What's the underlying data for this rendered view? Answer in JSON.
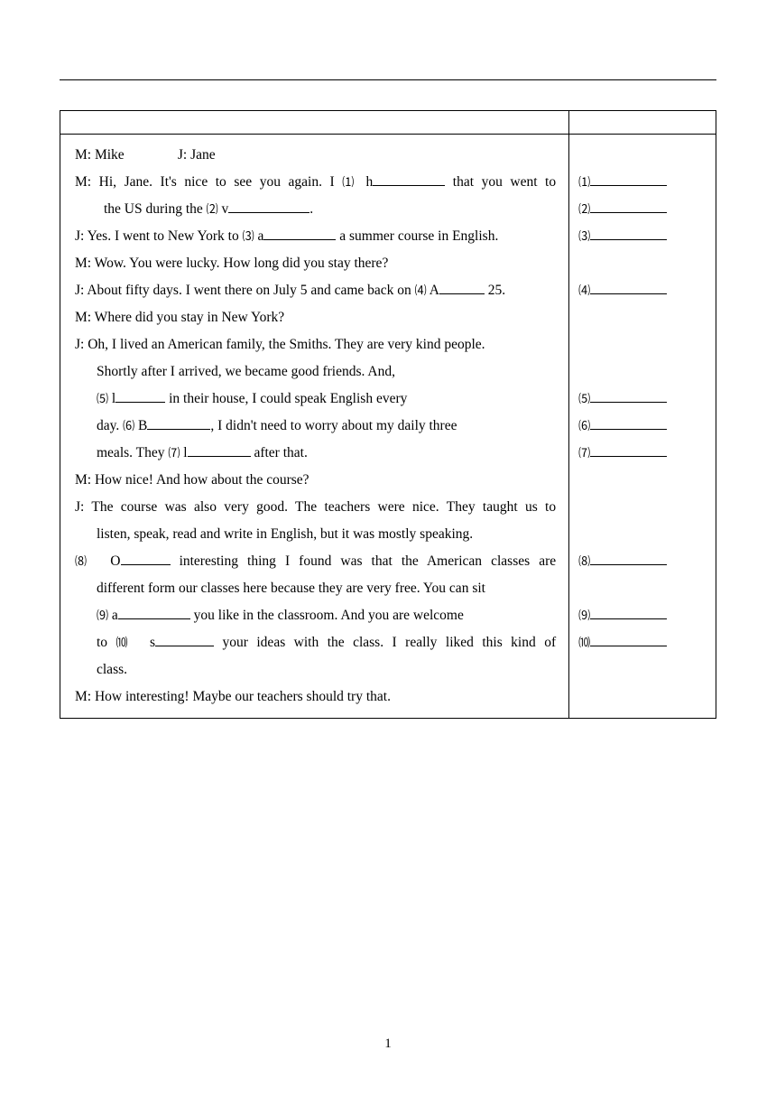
{
  "speakers": {
    "m": "M: Mike",
    "j": "J: Jane"
  },
  "dialogue": {
    "l1a": "M: Hi, Jane. It's nice to see you again. I",
    "l1_num": "⑴",
    "l1_letter": "h",
    "l1b": "that you went to",
    "l2a": "the US during the",
    "l2_num": "⑵",
    "l2_letter": "v",
    "l3a": "J: Yes. I went to New York to",
    "l3_num": "⑶",
    "l3_letter": "a",
    "l3b": "a summer course in English.",
    "l4": "M: Wow. You were lucky. How long did you stay there?",
    "l5a": "J: About fifty days. I went there on July 5 and came back on",
    "l5_num": "⑷",
    "l5_letter": "A",
    "l5b": "25.",
    "l6": "M: Where did you stay in New York?",
    "l7": "J: Oh, I lived an American family, the Smiths. They are very kind people.",
    "l8": "Shortly after I arrived, we became good friends. And,",
    "l9_num": "⑸",
    "l9_letter": "l",
    "l9b": "in their house, I could speak English every",
    "l10a": "day.",
    "l10_num": "⑹",
    "l10_letter": "B",
    "l10b": ", I didn't need to worry about my daily three",
    "l11a": "meals. They",
    "l11_num": "⑺",
    "l11_letter": "l",
    "l11b": "after that.",
    "l12": "M: How nice! And how about the course?",
    "l13": "J: The course was also very good. The teachers were nice. They taught us to",
    "l14": "listen, speak, read and write in English, but it was mostly speaking.",
    "l15_num": "⑻",
    "l15_letter": "O",
    "l15b": "interesting thing I found was that the American classes are",
    "l16": "different form our classes here because they are very free. You can sit",
    "l17_num": "⑼",
    "l17_letter": "a",
    "l17b": "you like in the classroom. And you are welcome",
    "l18a": "to",
    "l18_num": "⑽",
    "l18_letter": "s",
    "l18b": "your ideas with the class. I really liked this kind of",
    "l19": "class.",
    "l20": "M: How interesting! Maybe our teachers should try that."
  },
  "answers": {
    "n1": "⑴",
    "n2": "⑵",
    "n3": "⑶",
    "n4": "⑷",
    "n5": "⑸",
    "n6": "⑹",
    "n7": "⑺",
    "n8": "⑻",
    "n9": "⑼",
    "n10": "⑽"
  },
  "pageNumber": "1"
}
